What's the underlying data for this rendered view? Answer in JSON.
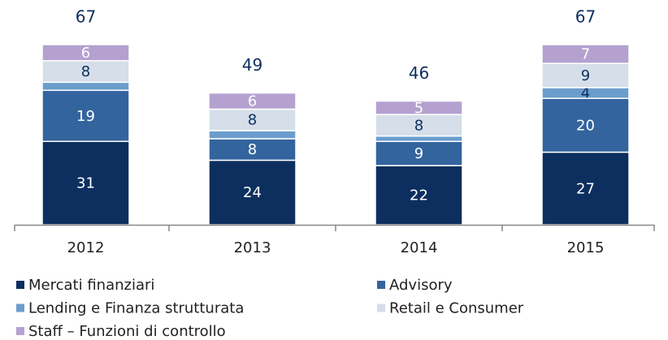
{
  "chart_data": {
    "type": "stacked_bar",
    "categories": [
      "2012",
      "2013",
      "2014",
      "2015"
    ],
    "series": [
      {
        "name": "Mercati finanziari",
        "color": "#0c2f5f",
        "values": [
          31,
          24,
          22,
          27
        ]
      },
      {
        "name": "Advisory",
        "color": "#33649e",
        "values": [
          19,
          8,
          9,
          20
        ]
      },
      {
        "name": "Lending e Finanza strutturata",
        "color": "#6b9dcc",
        "values": [
          3,
          3,
          2,
          4
        ]
      },
      {
        "name": "Retail e Consumer",
        "color": "#d5dee9",
        "values": [
          8,
          8,
          8,
          9
        ]
      },
      {
        "name": "Staff – Funzioni di controllo",
        "color": "#b4a1cf",
        "values": [
          6,
          6,
          5,
          7
        ]
      }
    ],
    "totals": [
      67,
      49,
      46,
      67
    ],
    "ylim": [
      0,
      70
    ]
  }
}
